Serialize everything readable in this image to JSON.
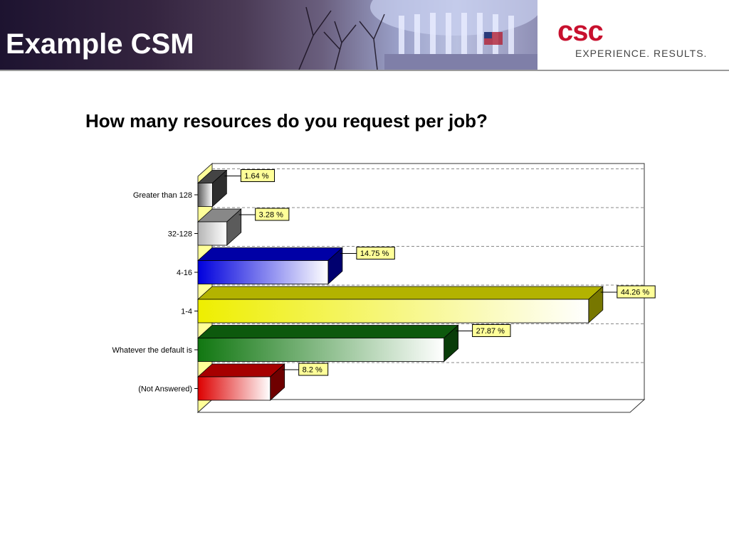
{
  "slide": {
    "title": "Example CSM",
    "logo_text": "csc",
    "tagline": "EXPERIENCE. RESULTS."
  },
  "chart_data": {
    "type": "bar",
    "orientation": "horizontal",
    "style": "3d",
    "title": "How many resources do you request per job?",
    "categories": [
      "Greater than 128",
      "32-128",
      "4-16",
      "1-4",
      "Whatever the default is",
      "(Not Answered)"
    ],
    "values": [
      1.64,
      3.28,
      14.75,
      44.26,
      27.87,
      8.2
    ],
    "value_labels": [
      "1.64 %",
      "3.28 %",
      "14.75 %",
      "44.26 %",
      "27.87 %",
      "8.2 %"
    ],
    "colors": [
      "#5a5a5a",
      "#b5b5b5",
      "#0000dd",
      "#eeee00",
      "#117711",
      "#dd0000"
    ],
    "grid": true,
    "legend": "none"
  }
}
